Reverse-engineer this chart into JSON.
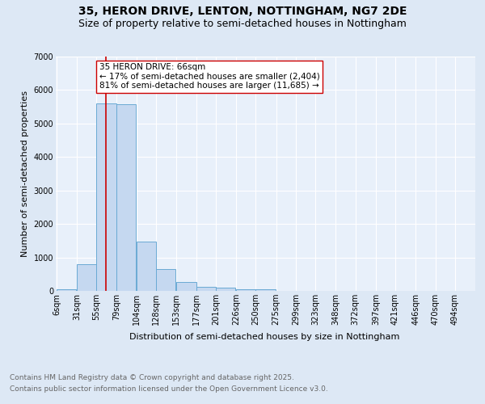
{
  "title1": "35, HERON DRIVE, LENTON, NOTTINGHAM, NG7 2DE",
  "title2": "Size of property relative to semi-detached houses in Nottingham",
  "xlabel": "Distribution of semi-detached houses by size in Nottingham",
  "ylabel": "Number of semi-detached properties",
  "bin_labels": [
    "6sqm",
    "31sqm",
    "55sqm",
    "79sqm",
    "104sqm",
    "128sqm",
    "153sqm",
    "177sqm",
    "201sqm",
    "226sqm",
    "250sqm",
    "275sqm",
    "299sqm",
    "323sqm",
    "348sqm",
    "372sqm",
    "397sqm",
    "421sqm",
    "446sqm",
    "470sqm",
    "494sqm"
  ],
  "bar_heights": [
    50,
    800,
    5600,
    5570,
    1470,
    650,
    270,
    130,
    90,
    60,
    50,
    0,
    0,
    0,
    0,
    0,
    0,
    0,
    0,
    0,
    0
  ],
  "bar_color": "#c5d8f0",
  "bar_edge_color": "#6aaad4",
  "vline_x": 66,
  "vline_color": "#cc0000",
  "annotation_text": "35 HERON DRIVE: 66sqm\n← 17% of semi-detached houses are smaller (2,404)\n81% of semi-detached houses are larger (11,685) →",
  "annotation_box_color": "#ffffff",
  "annotation_box_edge": "#cc0000",
  "ylim": [
    0,
    7000
  ],
  "yticks": [
    0,
    1000,
    2000,
    3000,
    4000,
    5000,
    6000,
    7000
  ],
  "footer1": "Contains HM Land Registry data © Crown copyright and database right 2025.",
  "footer2": "Contains public sector information licensed under the Open Government Licence v3.0.",
  "bg_color": "#dde8f5",
  "plot_bg_color": "#e8f0fa",
  "title_fontsize": 10,
  "subtitle_fontsize": 9,
  "axis_label_fontsize": 8,
  "tick_fontsize": 7,
  "annotation_fontsize": 7.5,
  "footer_fontsize": 6.5,
  "bin_starts": [
    6,
    31,
    55,
    79,
    104,
    128,
    153,
    177,
    201,
    226,
    250,
    275,
    299,
    323,
    348,
    372,
    397,
    421,
    446,
    470,
    494
  ],
  "bin_width": 24
}
